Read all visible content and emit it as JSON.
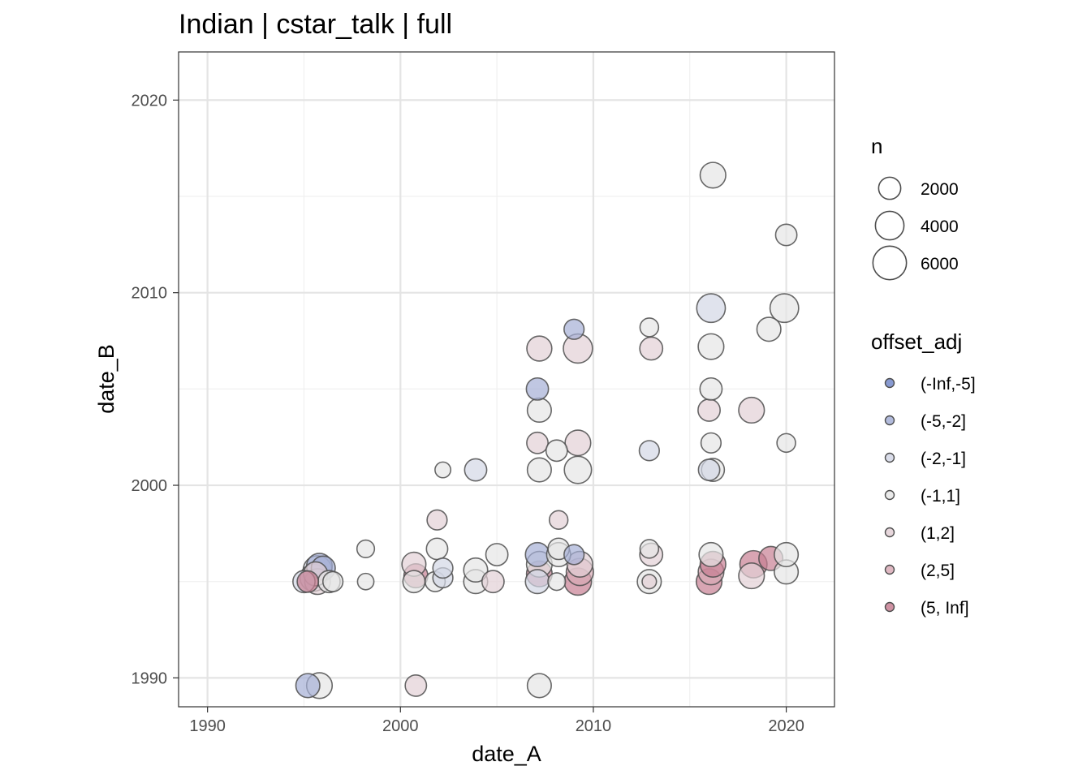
{
  "chart_data": {
    "type": "scatter",
    "title": "Indian | cstar_talk | full",
    "xlabel": "date_A",
    "ylabel": "date_B",
    "xlim": [
      1988.5,
      2022.5
    ],
    "ylim": [
      1988.5,
      2022.5
    ],
    "x_ticks": [
      1990,
      2000,
      2010,
      2020
    ],
    "y_ticks": [
      1990,
      2000,
      2010,
      2020
    ],
    "grid": true,
    "legend_position": "right",
    "size_legend": {
      "title": "n",
      "entries": [
        {
          "label": "2000",
          "value": 2000
        },
        {
          "label": "4000",
          "value": 4000
        },
        {
          "label": "6000",
          "value": 6000
        }
      ]
    },
    "color_legend": {
      "title": "offset_adj",
      "entries": [
        {
          "label": "(-Inf,-5]",
          "color": "#7388c9"
        },
        {
          "label": "(-5,-2]",
          "color": "#a5afd6"
        },
        {
          "label": "(-2,-1]",
          "color": "#d3d7e6"
        },
        {
          "label": "(-1,1]",
          "color": "#e6e6e6"
        },
        {
          "label": "(1,2]",
          "color": "#e3d0d6"
        },
        {
          "label": "(2,5]",
          "color": "#d9abb7"
        },
        {
          "label": "(5, Inf]",
          "color": "#c77f93"
        }
      ]
    },
    "points": [
      {
        "x": 1995.2,
        "y": 1989.6,
        "n": 2500,
        "group": "(-5,-2]"
      },
      {
        "x": 1995.8,
        "y": 1989.6,
        "n": 3000,
        "group": "(-1,1]"
      },
      {
        "x": 2000.8,
        "y": 1989.6,
        "n": 1800,
        "group": "(1,2]"
      },
      {
        "x": 2007.2,
        "y": 1989.6,
        "n": 2500,
        "group": "(-1,1]"
      },
      {
        "x": 1995.0,
        "y": 1995.0,
        "n": 2000,
        "group": "(-2,-1]"
      },
      {
        "x": 1995.2,
        "y": 1995.0,
        "n": 1800,
        "group": "(5, Inf]"
      },
      {
        "x": 1995.5,
        "y": 1995.2,
        "n": 3500,
        "group": "(-2,-1]"
      },
      {
        "x": 1995.7,
        "y": 1995.6,
        "n": 4000,
        "group": "(-2,-1]"
      },
      {
        "x": 1995.8,
        "y": 1995.8,
        "n": 3000,
        "group": "(-5,-2]"
      },
      {
        "x": 1996.0,
        "y": 1995.7,
        "n": 2500,
        "group": "(-5,-2]"
      },
      {
        "x": 1995.7,
        "y": 1995.0,
        "n": 3000,
        "group": "(1,2]"
      },
      {
        "x": 1995.6,
        "y": 1995.4,
        "n": 2500,
        "group": "(1,2]"
      },
      {
        "x": 1996.3,
        "y": 1995.0,
        "n": 2000,
        "group": "(-1,1]"
      },
      {
        "x": 1996.5,
        "y": 1995.0,
        "n": 1500,
        "group": "(-1,1]"
      },
      {
        "x": 1998.2,
        "y": 1995.0,
        "n": 800,
        "group": "(-1,1]"
      },
      {
        "x": 1998.2,
        "y": 1996.7,
        "n": 1000,
        "group": "(-1,1]"
      },
      {
        "x": 2000.7,
        "y": 1995.0,
        "n": 2000,
        "group": "(-1,1]"
      },
      {
        "x": 2000.8,
        "y": 1995.3,
        "n": 2500,
        "group": "(5, Inf]"
      },
      {
        "x": 2000.7,
        "y": 1995.9,
        "n": 2500,
        "group": "(1,2]"
      },
      {
        "x": 2001.8,
        "y": 1995.0,
        "n": 1500,
        "group": "(-1,1]"
      },
      {
        "x": 2001.9,
        "y": 1996.7,
        "n": 1800,
        "group": "(-1,1]"
      },
      {
        "x": 2001.9,
        "y": 1998.2,
        "n": 1500,
        "group": "(1,2]"
      },
      {
        "x": 2002.2,
        "y": 1995.2,
        "n": 1500,
        "group": "(-2,-1]"
      },
      {
        "x": 2002.2,
        "y": 1995.7,
        "n": 1500,
        "group": "(-2,-1]"
      },
      {
        "x": 2002.2,
        "y": 2000.8,
        "n": 700,
        "group": "(-1,1]"
      },
      {
        "x": 2003.9,
        "y": 1995.0,
        "n": 2500,
        "group": "(-1,1]"
      },
      {
        "x": 2003.9,
        "y": 1995.6,
        "n": 2500,
        "group": "(-1,1]"
      },
      {
        "x": 2003.9,
        "y": 2000.8,
        "n": 2000,
        "group": "(-2,-1]"
      },
      {
        "x": 2004.8,
        "y": 1995.0,
        "n": 2000,
        "group": "(1,2]"
      },
      {
        "x": 2005.0,
        "y": 1996.4,
        "n": 2000,
        "group": "(-1,1]"
      },
      {
        "x": 2007.1,
        "y": 1995.0,
        "n": 2500,
        "group": "(-2,-1]"
      },
      {
        "x": 2007.2,
        "y": 1995.4,
        "n": 3000,
        "group": "(5, Inf]"
      },
      {
        "x": 2007.2,
        "y": 1995.9,
        "n": 3000,
        "group": "(-1,1]"
      },
      {
        "x": 2007.1,
        "y": 1996.4,
        "n": 2500,
        "group": "(-5,-2]"
      },
      {
        "x": 2007.2,
        "y": 2000.8,
        "n": 2500,
        "group": "(-1,1]"
      },
      {
        "x": 2007.1,
        "y": 2002.2,
        "n": 1800,
        "group": "(1,2]"
      },
      {
        "x": 2007.2,
        "y": 2003.9,
        "n": 2500,
        "group": "(-1,1]"
      },
      {
        "x": 2007.1,
        "y": 2005.0,
        "n": 2000,
        "group": "(-5,-2]"
      },
      {
        "x": 2007.2,
        "y": 2007.1,
        "n": 2800,
        "group": "(1,2]"
      },
      {
        "x": 2008.1,
        "y": 1995.0,
        "n": 1000,
        "group": "(-1,1]"
      },
      {
        "x": 2008.2,
        "y": 1996.4,
        "n": 2500,
        "group": "(-1,1]"
      },
      {
        "x": 2008.2,
        "y": 1996.7,
        "n": 1800,
        "group": "(-1,1]"
      },
      {
        "x": 2008.2,
        "y": 1998.2,
        "n": 1200,
        "group": "(1,2]"
      },
      {
        "x": 2008.1,
        "y": 2001.8,
        "n": 1800,
        "group": "(-1,1]"
      },
      {
        "x": 2009.0,
        "y": 2008.1,
        "n": 1500,
        "group": "(-5,-2]"
      },
      {
        "x": 2009.0,
        "y": 1996.4,
        "n": 1500,
        "group": "(-5,-2]"
      },
      {
        "x": 2009.2,
        "y": 1995.0,
        "n": 3500,
        "group": "(5, Inf]"
      },
      {
        "x": 2009.3,
        "y": 1995.5,
        "n": 3500,
        "group": "(2,5]"
      },
      {
        "x": 2009.3,
        "y": 1995.9,
        "n": 3000,
        "group": "(1,2]"
      },
      {
        "x": 2009.2,
        "y": 2000.8,
        "n": 3500,
        "group": "(-1,1]"
      },
      {
        "x": 2009.2,
        "y": 2002.2,
        "n": 3000,
        "group": "(1,2]"
      },
      {
        "x": 2009.2,
        "y": 2007.1,
        "n": 4200,
        "group": "(1,2]"
      },
      {
        "x": 2012.9,
        "y": 1995.0,
        "n": 2500,
        "group": "(-1,1]"
      },
      {
        "x": 2012.9,
        "y": 1995.0,
        "n": 500,
        "group": "(1,2]"
      },
      {
        "x": 2013.0,
        "y": 1996.4,
        "n": 2200,
        "group": "(1,2]"
      },
      {
        "x": 2012.9,
        "y": 1996.7,
        "n": 1200,
        "group": "(-1,1]"
      },
      {
        "x": 2012.9,
        "y": 2001.8,
        "n": 1500,
        "group": "(-2,-1]"
      },
      {
        "x": 2013.0,
        "y": 2007.1,
        "n": 2200,
        "group": "(1,2]"
      },
      {
        "x": 2012.9,
        "y": 2008.2,
        "n": 1200,
        "group": "(-1,1]"
      },
      {
        "x": 2016.0,
        "y": 1995.0,
        "n": 3000,
        "group": "(5, Inf]"
      },
      {
        "x": 2016.1,
        "y": 1995.5,
        "n": 3000,
        "group": "(2,5]"
      },
      {
        "x": 2016.2,
        "y": 1995.9,
        "n": 3000,
        "group": "(5, Inf]"
      },
      {
        "x": 2016.1,
        "y": 1996.4,
        "n": 2500,
        "group": "(-1,1]"
      },
      {
        "x": 2016.0,
        "y": 2000.8,
        "n": 1800,
        "group": "(-2,-1]"
      },
      {
        "x": 2016.2,
        "y": 2000.8,
        "n": 2200,
        "group": "(-1,1]"
      },
      {
        "x": 2016.1,
        "y": 2002.2,
        "n": 1500,
        "group": "(-1,1]"
      },
      {
        "x": 2016.0,
        "y": 2003.9,
        "n": 2000,
        "group": "(1,2]"
      },
      {
        "x": 2016.1,
        "y": 2005.0,
        "n": 2000,
        "group": "(-1,1]"
      },
      {
        "x": 2016.1,
        "y": 2007.2,
        "n": 3000,
        "group": "(-1,1]"
      },
      {
        "x": 2016.1,
        "y": 2009.2,
        "n": 4000,
        "group": "(-2,-1]"
      },
      {
        "x": 2016.2,
        "y": 2016.1,
        "n": 3000,
        "group": "(-1,1]"
      },
      {
        "x": 2018.2,
        "y": 1995.3,
        "n": 3000,
        "group": "(1,2]"
      },
      {
        "x": 2018.3,
        "y": 1995.9,
        "n": 3500,
        "group": "(5, Inf]"
      },
      {
        "x": 2018.2,
        "y": 2003.9,
        "n": 3000,
        "group": "(1,2]"
      },
      {
        "x": 2019.2,
        "y": 1996.2,
        "n": 2500,
        "group": "(5, Inf]"
      },
      {
        "x": 2019.1,
        "y": 2008.1,
        "n": 2500,
        "group": "(-1,1]"
      },
      {
        "x": 2020.0,
        "y": 1995.5,
        "n": 2500,
        "group": "(-1,1]"
      },
      {
        "x": 2020.0,
        "y": 1996.4,
        "n": 2500,
        "group": "(-1,1]"
      },
      {
        "x": 2020.0,
        "y": 2002.2,
        "n": 1200,
        "group": "(-1,1]"
      },
      {
        "x": 2019.9,
        "y": 2009.2,
        "n": 4000,
        "group": "(-1,1]"
      },
      {
        "x": 2020.0,
        "y": 2013.0,
        "n": 1800,
        "group": "(-1,1]"
      }
    ]
  }
}
